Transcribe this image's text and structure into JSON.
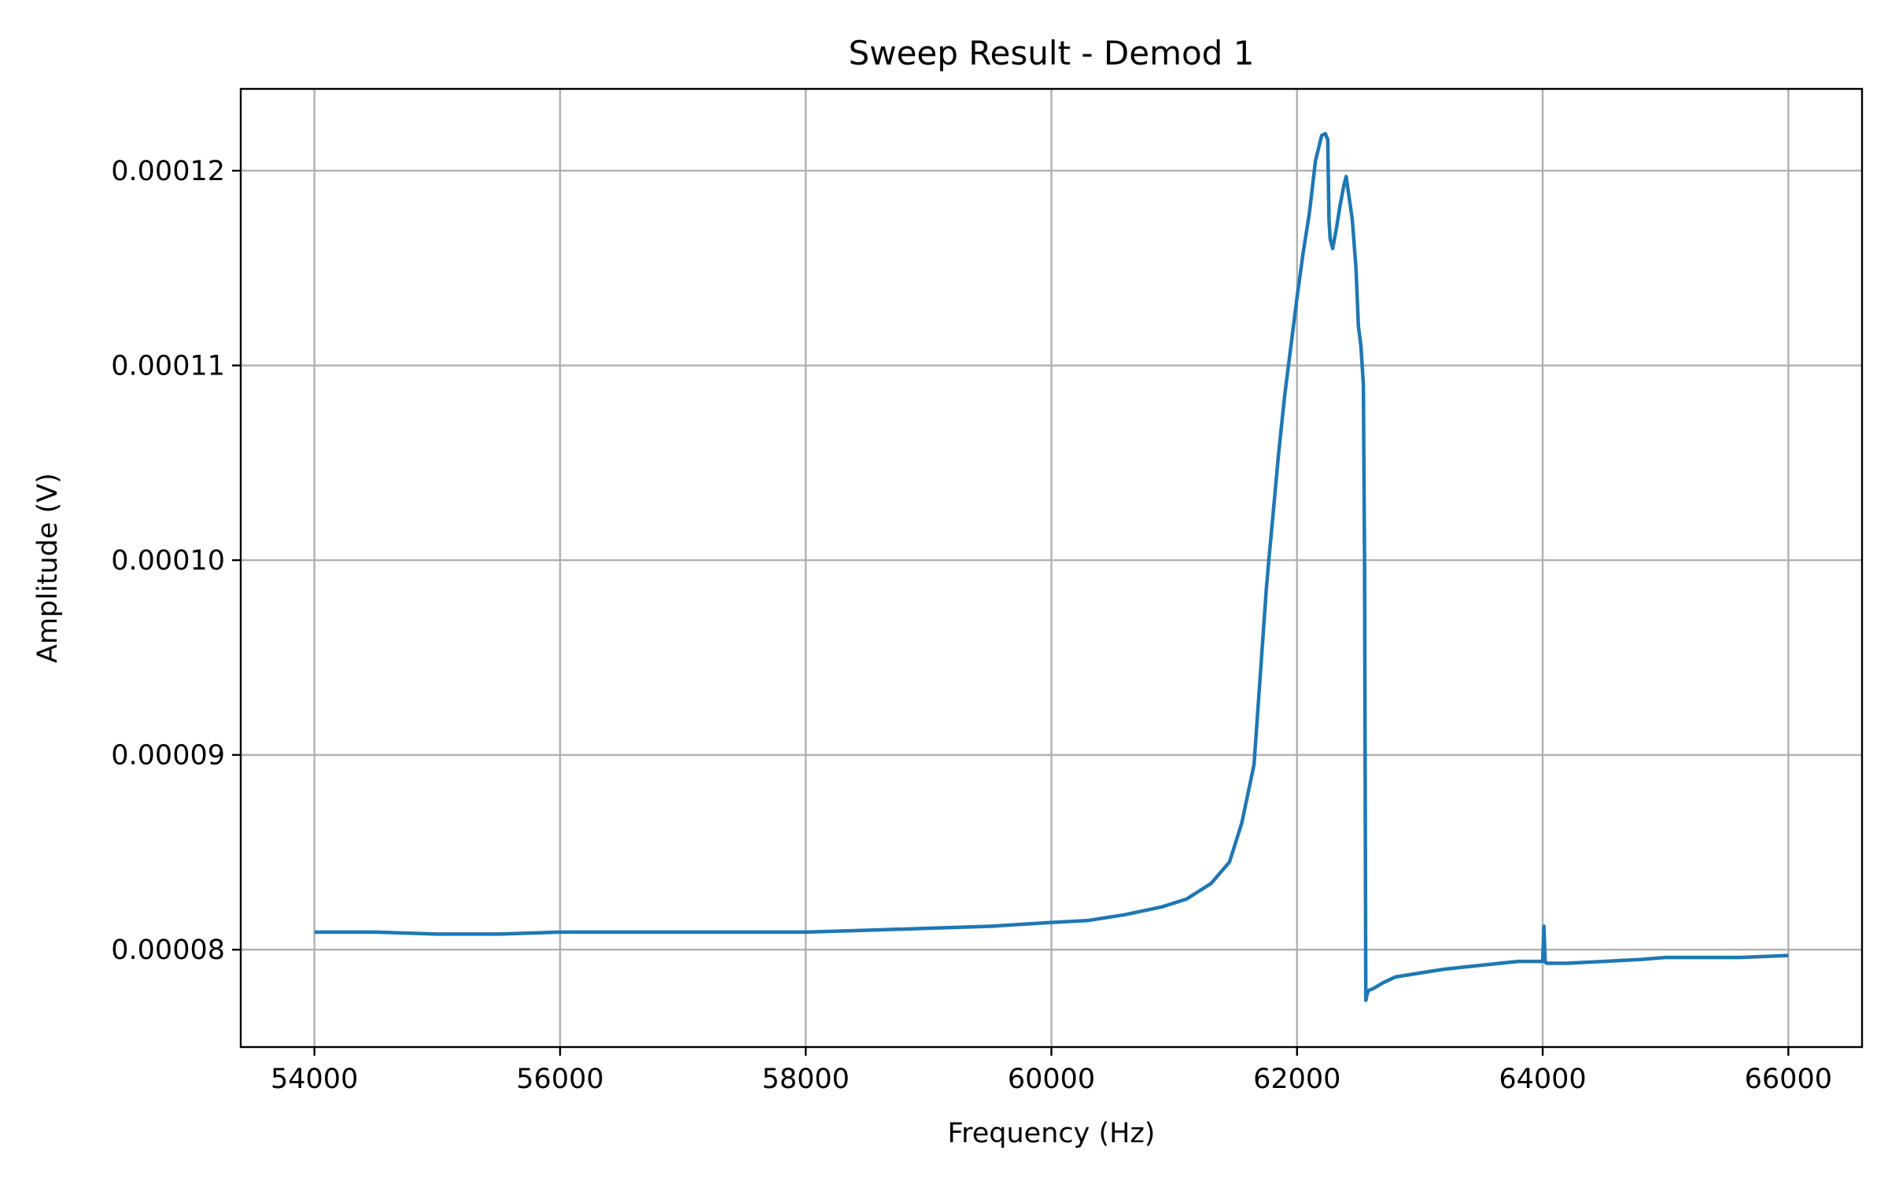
{
  "chart_data": {
    "type": "line",
    "title": "Sweep Result - Demod 1",
    "xlabel": "Frequency (Hz)",
    "ylabel": "Amplitude (V)",
    "xlim": [
      53400,
      66600
    ],
    "ylim": [
      7.5e-05,
      0.0001242
    ],
    "xticks": [
      54000,
      56000,
      58000,
      60000,
      62000,
      64000,
      66000
    ],
    "xtick_labels": [
      "54000",
      "56000",
      "58000",
      "60000",
      "62000",
      "64000",
      "66000"
    ],
    "yticks": [
      8e-05,
      9e-05,
      0.0001,
      0.00011,
      0.00012
    ],
    "ytick_labels": [
      "0.00008",
      "0.00009",
      "0.00010",
      "0.00011",
      "0.00012"
    ],
    "grid": true,
    "line_color": "#1f77b4",
    "series": [
      {
        "x": [
          54000,
          54500,
          55000,
          55500,
          56000,
          56500,
          57000,
          57500,
          58000,
          58500,
          59000,
          59500,
          60000,
          60300,
          60600,
          60900,
          61100,
          61300,
          61450,
          61550,
          61650,
          61700,
          61750,
          61770,
          61800,
          61850,
          61900,
          61950,
          62000,
          62050,
          62100,
          62150,
          62200,
          62230,
          62250,
          62260,
          62270,
          62290,
          62320,
          62350,
          62380,
          62400,
          62420,
          62450,
          62480,
          62500,
          62520,
          62540,
          62550,
          62560,
          62570,
          62580,
          62620,
          62700,
          62800,
          63000,
          63200,
          63500,
          63800,
          64000,
          64010,
          64020,
          64030,
          64200,
          64500,
          64800,
          65000,
          65300,
          65600,
          66000
        ],
        "y": [
          8.09e-05,
          8.09e-05,
          8.08e-05,
          8.08e-05,
          8.09e-05,
          8.09e-05,
          8.09e-05,
          8.09e-05,
          8.09e-05,
          8.1e-05,
          8.11e-05,
          8.12e-05,
          8.14e-05,
          8.15e-05,
          8.18e-05,
          8.22e-05,
          8.26e-05,
          8.34e-05,
          8.45e-05,
          8.65e-05,
          8.95e-05,
          9.4e-05,
          9.85e-05,
          0.0001,
          0.000102,
          0.0001055,
          0.0001085,
          0.000111,
          0.0001135,
          0.0001158,
          0.0001178,
          0.0001205,
          0.0001218,
          0.0001219,
          0.0001216,
          0.0001175,
          0.0001165,
          0.000116,
          0.000117,
          0.0001182,
          0.0001192,
          0.0001197,
          0.0001188,
          0.0001175,
          0.000115,
          0.000112,
          0.000111,
          0.000109,
          0.0001,
          7.74e-05,
          7.77e-05,
          7.79e-05,
          7.8e-05,
          7.83e-05,
          7.86e-05,
          7.88e-05,
          7.9e-05,
          7.92e-05,
          7.94e-05,
          7.94e-05,
          8.12e-05,
          7.94e-05,
          7.93e-05,
          7.93e-05,
          7.94e-05,
          7.95e-05,
          7.96e-05,
          7.96e-05,
          7.96e-05,
          7.97e-05
        ]
      }
    ]
  }
}
